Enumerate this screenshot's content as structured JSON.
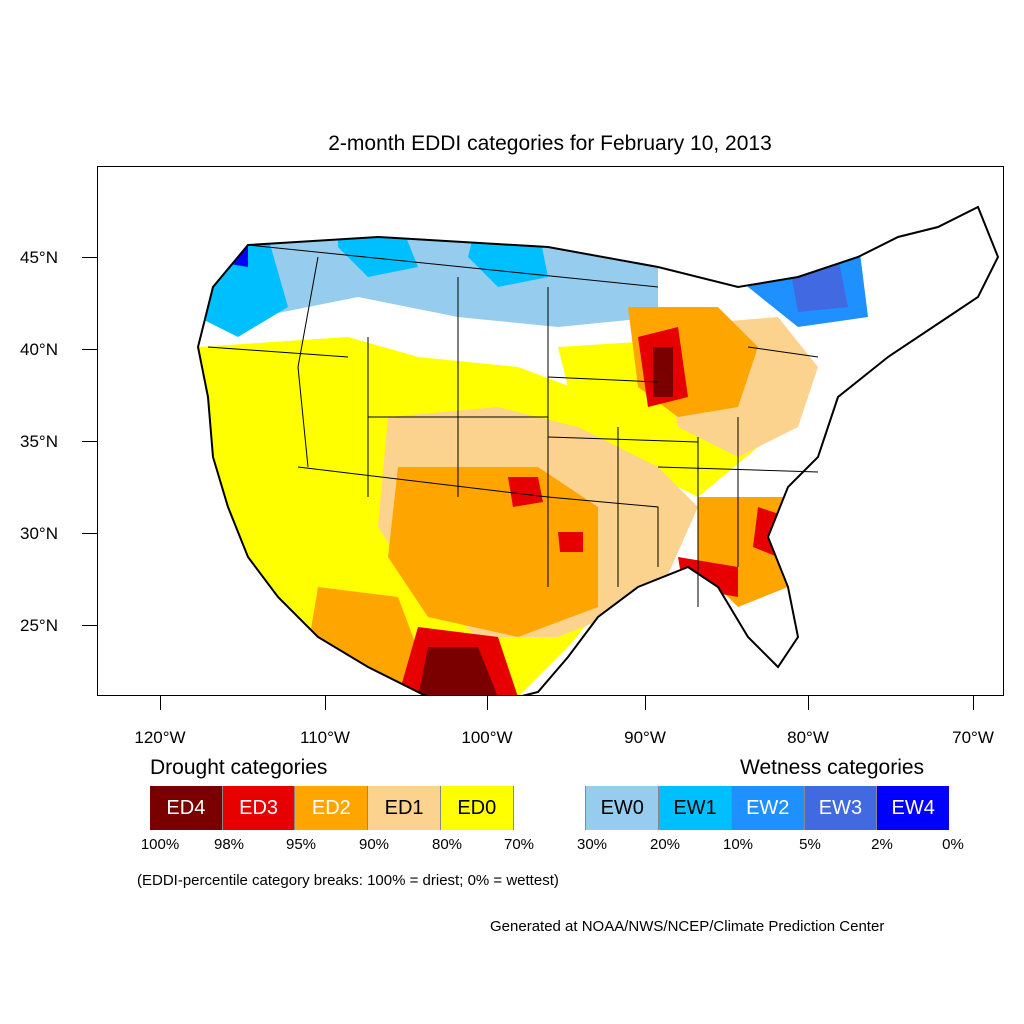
{
  "title": "2-month EDDI categories for February 10, 2013",
  "map": {
    "lat_labels": [
      "45°N",
      "40°N",
      "35°N",
      "30°N",
      "25°N"
    ],
    "lon_labels": [
      "120°W",
      "110°W",
      "100°W",
      "90°W",
      "80°W",
      "70°W"
    ],
    "colors": {
      "ED4": "#7a0000",
      "ED3": "#e60000",
      "ED2": "#ffa500",
      "ED1": "#fcd38e",
      "ED0": "#ffff00",
      "neutral": "#ffffff",
      "EW0": "#96ccee",
      "EW1": "#00bfff",
      "EW2": "#1e90ff",
      "EW3": "#4169e1",
      "EW4": "#0000ff"
    }
  },
  "legend": {
    "drought_heading": "Drought categories",
    "wetness_heading": "Wetness categories",
    "categories": [
      {
        "label": "ED4",
        "color": "#7a0000",
        "text_color": "#ffffff"
      },
      {
        "label": "ED3",
        "color": "#e60000",
        "text_color": "#ffffff"
      },
      {
        "label": "ED2",
        "color": "#ffa500",
        "text_color": "#ffffff"
      },
      {
        "label": "ED1",
        "color": "#fcd38e",
        "text_color": "#000000"
      },
      {
        "label": "ED0",
        "color": "#ffff00",
        "text_color": "#000000"
      },
      {
        "label": "",
        "color": "#ffffff",
        "text_color": "#000000"
      },
      {
        "label": "EW0",
        "color": "#96ccee",
        "text_color": "#000000"
      },
      {
        "label": "EW1",
        "color": "#00bfff",
        "text_color": "#000000"
      },
      {
        "label": "EW2",
        "color": "#1e90ff",
        "text_color": "#ffffff"
      },
      {
        "label": "EW3",
        "color": "#4169e1",
        "text_color": "#ffffff"
      },
      {
        "label": "EW4",
        "color": "#0000ff",
        "text_color": "#ffffff"
      }
    ],
    "breaks": [
      "100%",
      "98%",
      "95%",
      "90%",
      "80%",
      "70%",
      "30%",
      "20%",
      "10%",
      "5%",
      "2%",
      "0%"
    ],
    "note": "(EDDI-percentile category breaks: 100% = driest; 0% = wettest)"
  },
  "credit": "Generated at NOAA/NWS/NCEP/Climate Prediction Center"
}
